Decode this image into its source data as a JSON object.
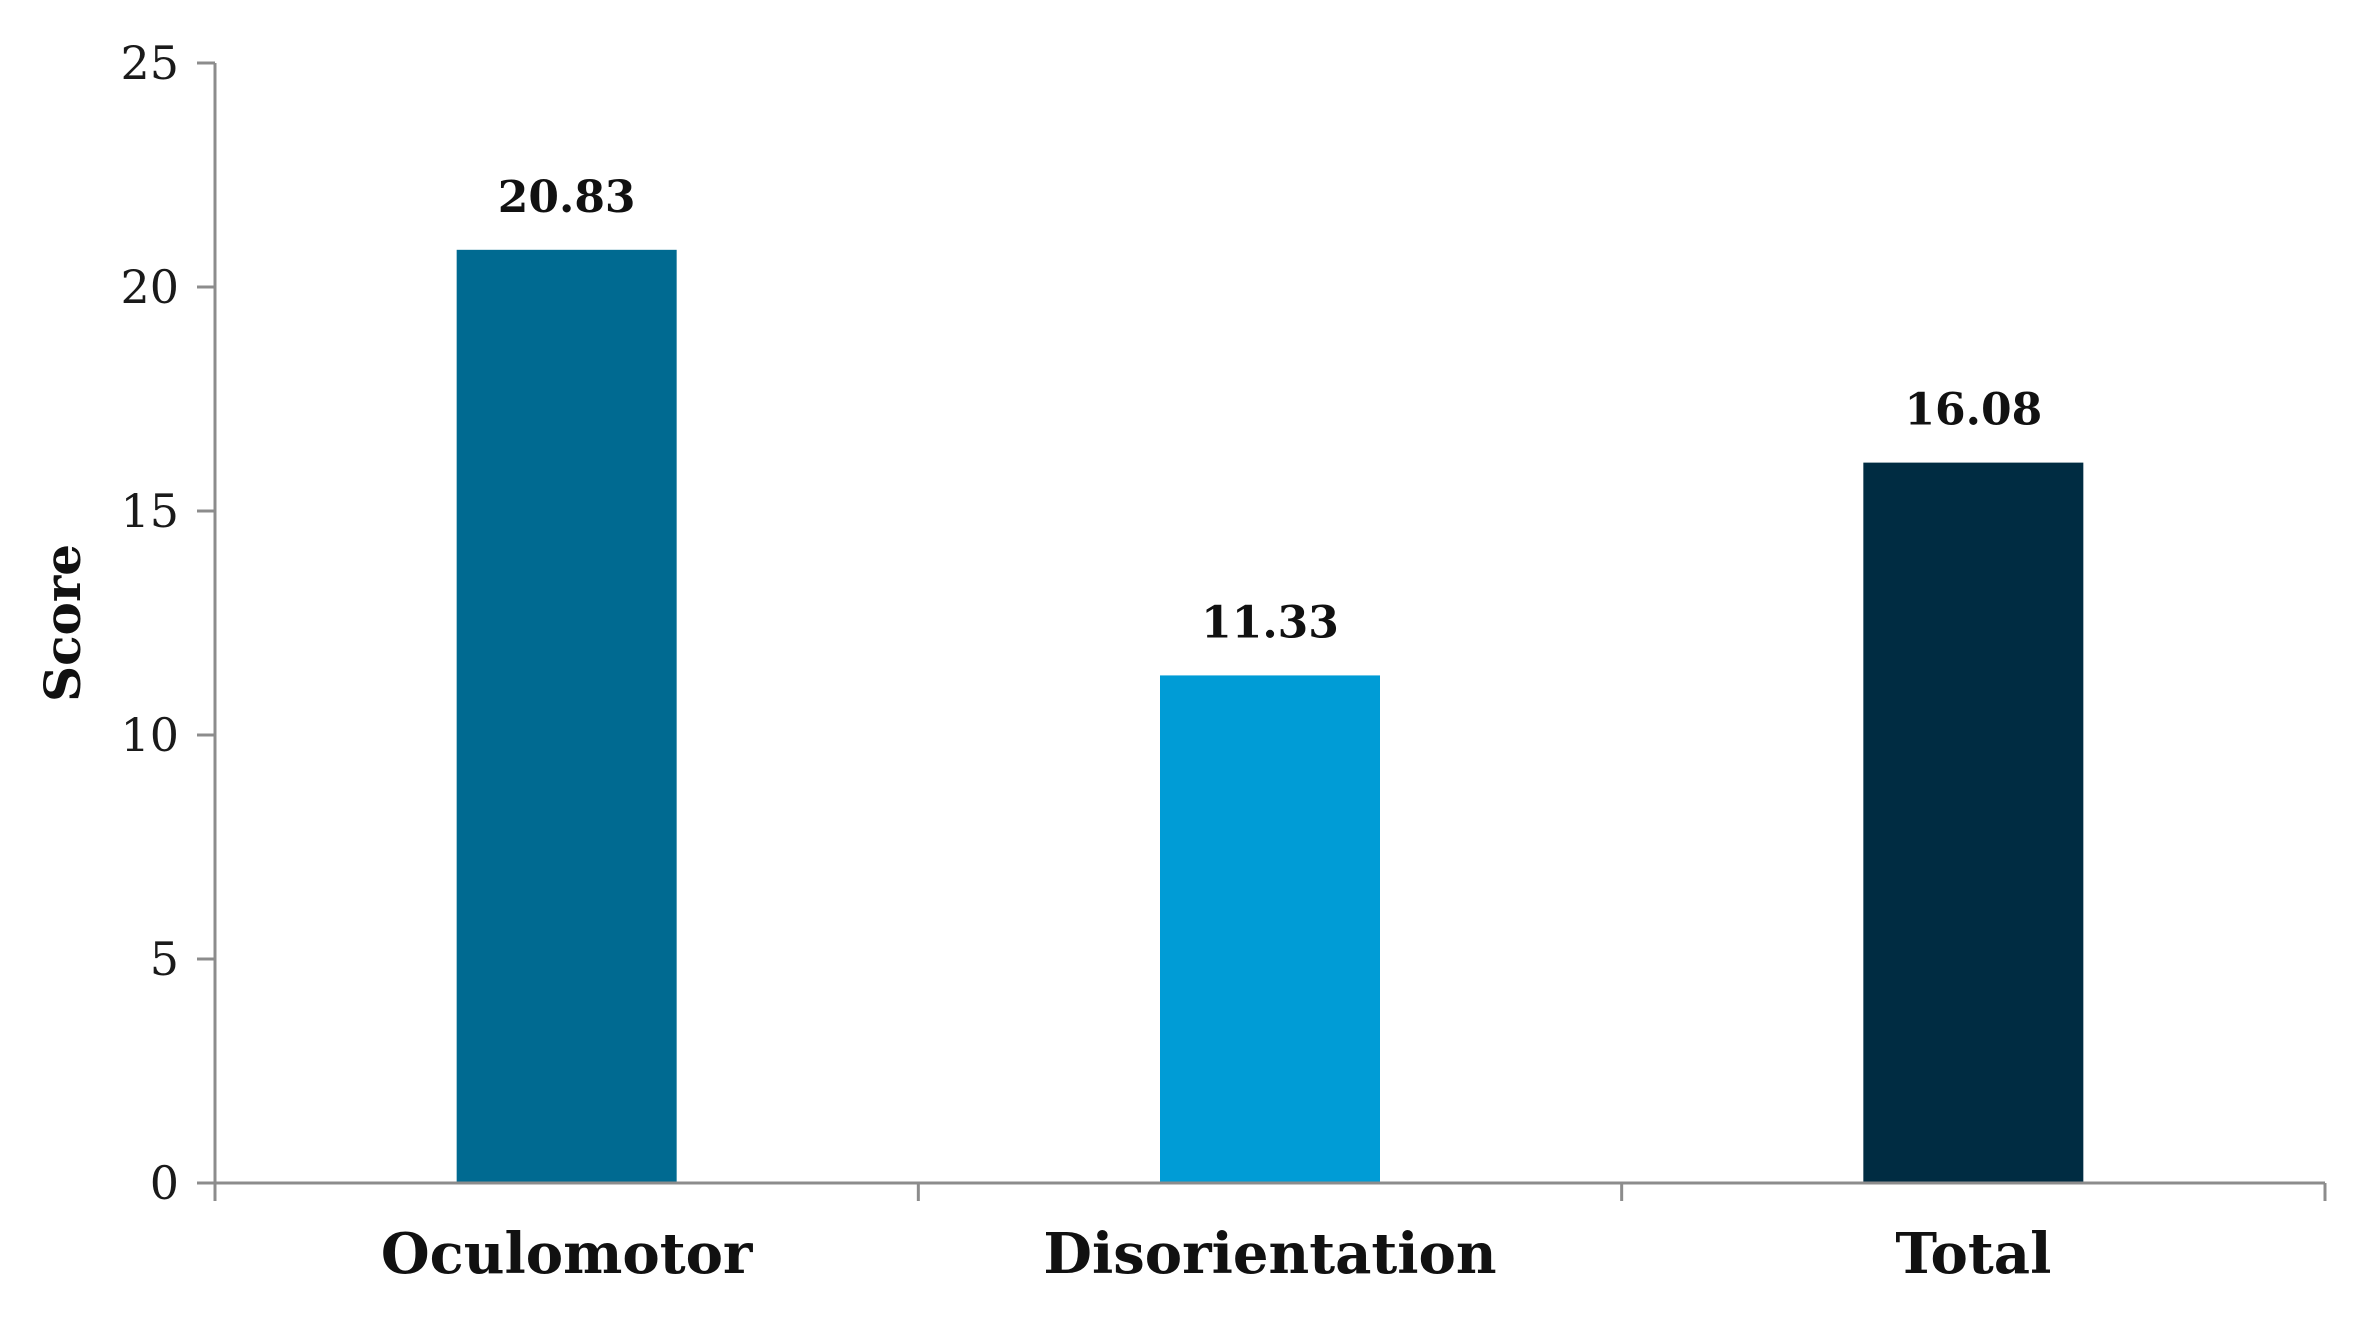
{
  "chart_data": {
    "type": "bar",
    "categories": [
      "Oculomotor",
      "Disorientation",
      "Total"
    ],
    "values": [
      20.83,
      11.33,
      16.08
    ],
    "data_labels": [
      "20.83",
      "11.33",
      "16.08"
    ],
    "colors": [
      "#006a91",
      "#009cd6",
      "#002c42"
    ],
    "title": "",
    "xlabel": "",
    "ylabel": "Score",
    "ylim": [
      0,
      25
    ],
    "yticks": [
      0,
      5,
      10,
      15,
      20,
      25
    ],
    "grid": false,
    "legend": "none"
  }
}
